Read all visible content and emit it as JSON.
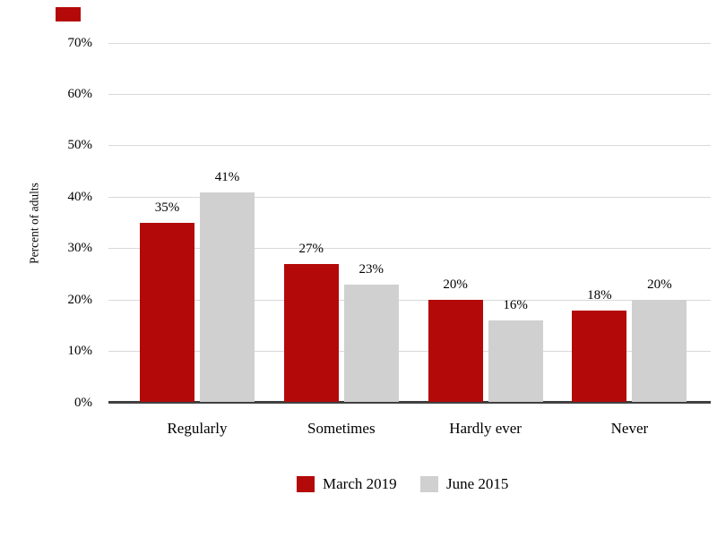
{
  "chart_data": {
    "type": "bar",
    "categories": [
      "Regularly",
      "Sometimes",
      "Hardly ever",
      "Never"
    ],
    "series": [
      {
        "name": "March 2019",
        "color": "#b30909",
        "values": [
          35,
          27,
          20,
          18
        ]
      },
      {
        "name": "June 2015",
        "color": "#d0d0d0",
        "values": [
          41,
          23,
          16,
          20
        ]
      }
    ],
    "value_label_format": "{v}%",
    "title": "",
    "xlabel": "",
    "ylabel": "Percent of adults",
    "ylim": [
      0,
      70
    ],
    "ytick_step": 10,
    "ytick_labels": [
      "0%",
      "10%",
      "20%",
      "30%",
      "40%",
      "50%",
      "60%",
      "70%"
    ],
    "grid": true,
    "legend_position": "bottom"
  },
  "colors": {
    "background": "#ffffff",
    "bar_red": "#b30909",
    "bar_gray": "#d0d0d0",
    "gridline": "#d9d9d9",
    "axis_line": "#404040",
    "text": "#000000",
    "brand_mark": "#b30909"
  }
}
